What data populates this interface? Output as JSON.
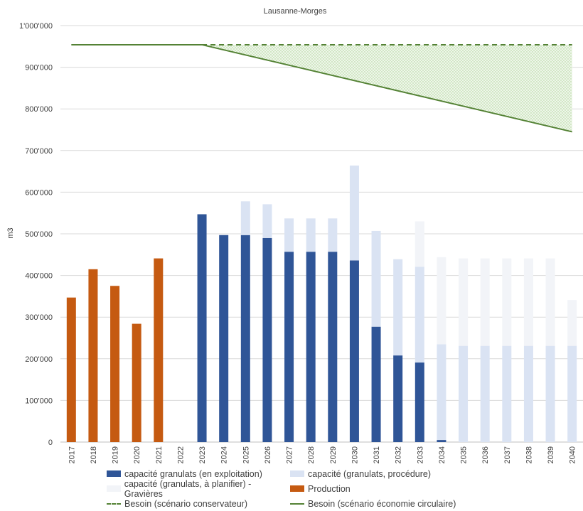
{
  "chart_data": {
    "type": "bar",
    "title": "Lausanne-Morges",
    "ylabel": "m3",
    "xlabel": "",
    "ylim": [
      0,
      1000000
    ],
    "yticks": [
      0,
      100000,
      200000,
      300000,
      400000,
      500000,
      600000,
      700000,
      800000,
      900000,
      1000000
    ],
    "ytick_labels": [
      "0",
      "100'000",
      "200'000",
      "300'000",
      "400'000",
      "500'000",
      "600'000",
      "700'000",
      "800'000",
      "900'000",
      "1'000'000"
    ],
    "categories": [
      "2017",
      "2018",
      "2019",
      "2020",
      "2021",
      "2022",
      "2023",
      "2024",
      "2025",
      "2026",
      "2027",
      "2028",
      "2029",
      "2030",
      "2031",
      "2032",
      "2033",
      "2034",
      "2035",
      "2036",
      "2037",
      "2038",
      "2039",
      "2040"
    ],
    "series": [
      {
        "name": "Production",
        "kind": "bar",
        "color": "#c55a11",
        "values": [
          347000,
          415000,
          375000,
          284000,
          441000,
          0,
          0,
          0,
          0,
          0,
          0,
          0,
          0,
          0,
          0,
          0,
          0,
          0,
          0,
          0,
          0,
          0,
          0,
          0
        ]
      },
      {
        "name": "capacité granulats (en exploitation)",
        "kind": "bar",
        "color": "#2f5597",
        "values": [
          0,
          0,
          0,
          0,
          0,
          0,
          547000,
          497000,
          497000,
          490000,
          457000,
          457000,
          457000,
          436000,
          277000,
          208000,
          191000,
          5000,
          0,
          0,
          0,
          0,
          0,
          0
        ]
      },
      {
        "name": "capacité (granulats, procédure)",
        "kind": "bar",
        "color": "#dae3f3",
        "values": [
          0,
          0,
          0,
          0,
          0,
          0,
          0,
          0,
          81000,
          81000,
          80000,
          80000,
          80000,
          228000,
          230000,
          231000,
          230000,
          230000,
          231000,
          231000,
          231000,
          231000,
          231000,
          231000
        ]
      },
      {
        "name": "capacité (granulats, à planifier) - Gravières",
        "kind": "bar",
        "color": "#f2f4f8",
        "values": [
          0,
          0,
          0,
          0,
          0,
          0,
          0,
          0,
          0,
          0,
          0,
          0,
          0,
          0,
          0,
          0,
          109000,
          209000,
          210000,
          210000,
          210000,
          210000,
          210000,
          110000
        ]
      },
      {
        "name": "Besoin (scénario conservateur)",
        "kind": "line",
        "style": "dashed",
        "color": "#548235",
        "x": [
          "2023",
          "2040"
        ],
        "values": [
          954000,
          954000
        ]
      },
      {
        "name": "Besoin (scénario économie circulaire)",
        "kind": "line",
        "style": "solid",
        "color": "#548235",
        "x": [
          "2017",
          "2023",
          "2040"
        ],
        "values": [
          954000,
          954000,
          745000
        ]
      }
    ],
    "grid": true,
    "legend_position": "bottom"
  }
}
